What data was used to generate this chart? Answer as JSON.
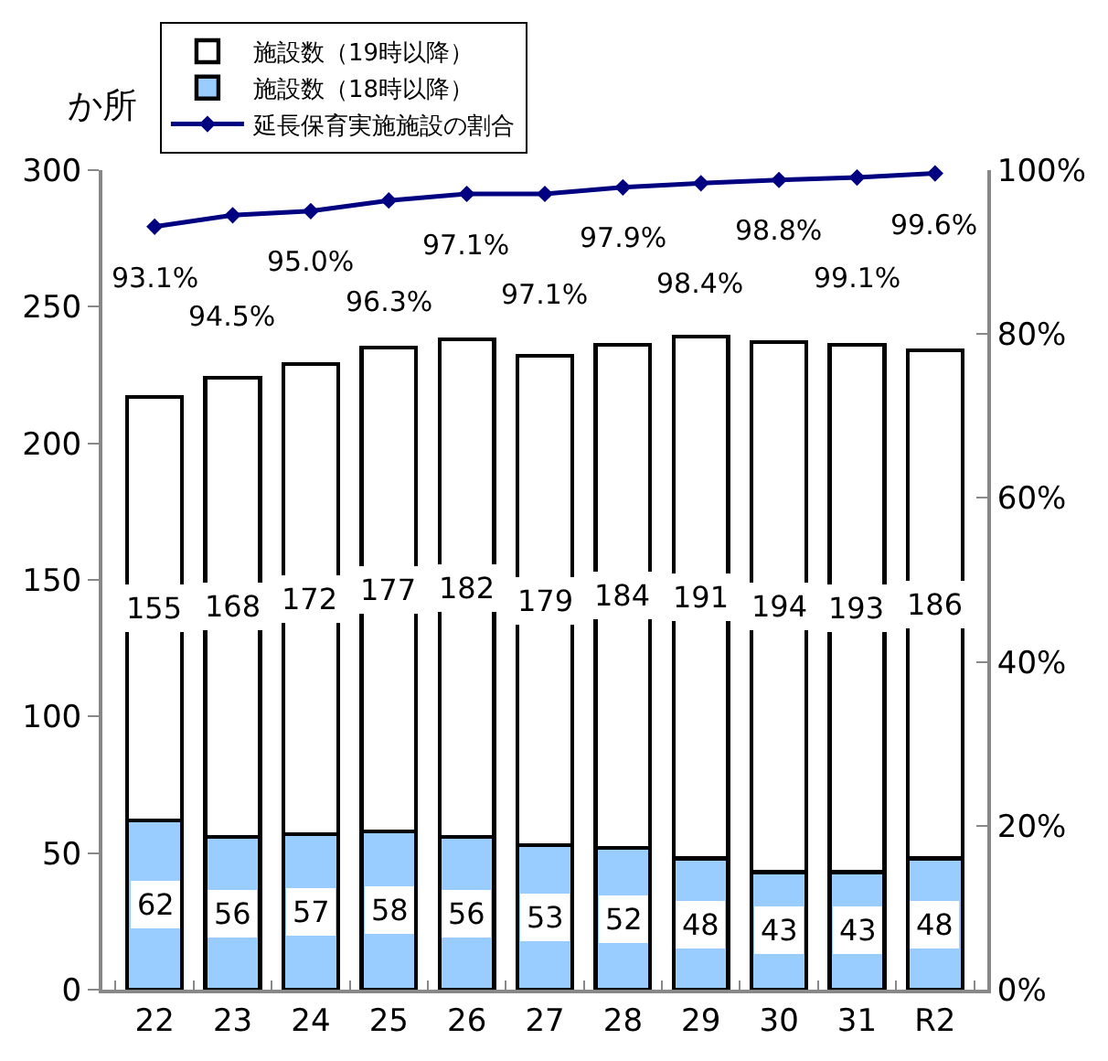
{
  "chart_data": {
    "type": "bar",
    "stacked": true,
    "categories": [
      "22",
      "23",
      "24",
      "25",
      "26",
      "27",
      "28",
      "29",
      "30",
      "31",
      "R2"
    ],
    "ylabel": "か所",
    "ylim": [
      0,
      300
    ],
    "yticks": [
      0,
      50,
      100,
      150,
      200,
      250,
      300
    ],
    "y2lim": [
      0,
      100
    ],
    "y2ticks": [
      {
        "value": 0,
        "label": "0%"
      },
      {
        "value": 20,
        "label": "20%"
      },
      {
        "value": 40,
        "label": "40%"
      },
      {
        "value": 60,
        "label": "60%"
      },
      {
        "value": 80,
        "label": "80%"
      },
      {
        "value": 100,
        "label": "100%"
      }
    ],
    "series": [
      {
        "name": "施設数（18時以降）",
        "color": "#99ccff",
        "values": [
          62,
          56,
          57,
          58,
          56,
          53,
          52,
          48,
          43,
          43,
          48
        ]
      },
      {
        "name": "施設数（19時以降）",
        "color": "#ffffff",
        "values": [
          155,
          168,
          172,
          177,
          182,
          179,
          184,
          191,
          194,
          193,
          186
        ]
      },
      {
        "name": "延長保育実施施設の割合",
        "type": "line",
        "axis": "y2",
        "color": "#000080",
        "values": [
          93.1,
          94.5,
          95.0,
          96.3,
          97.1,
          97.1,
          97.9,
          98.4,
          98.8,
          99.1,
          99.6
        ],
        "value_labels": [
          "93.1%",
          "94.5%",
          "95.0%",
          "96.3%",
          "97.1%",
          "97.1%",
          "97.9%",
          "98.4%",
          "98.8%",
          "99.1%",
          "99.6%"
        ]
      }
    ],
    "data_labels": true,
    "legend": "top",
    "marker": "diamond"
  }
}
